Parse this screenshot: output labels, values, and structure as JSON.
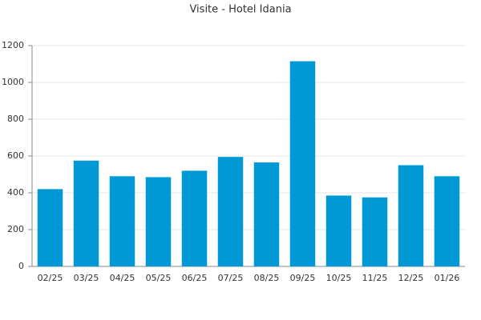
{
  "chart_data": {
    "type": "bar",
    "title": "Visite - Hotel Idania",
    "categories": [
      "02/25",
      "03/25",
      "04/25",
      "05/25",
      "06/25",
      "07/25",
      "08/25",
      "09/25",
      "10/25",
      "11/25",
      "12/25",
      "01/26"
    ],
    "values": [
      420,
      575,
      490,
      485,
      520,
      595,
      565,
      1115,
      385,
      375,
      550,
      490
    ],
    "color": "#0099d6",
    "ylim": [
      0,
      1200
    ],
    "yticks": [
      0,
      200,
      400,
      600,
      800,
      1000,
      1200
    ],
    "grid": true
  }
}
